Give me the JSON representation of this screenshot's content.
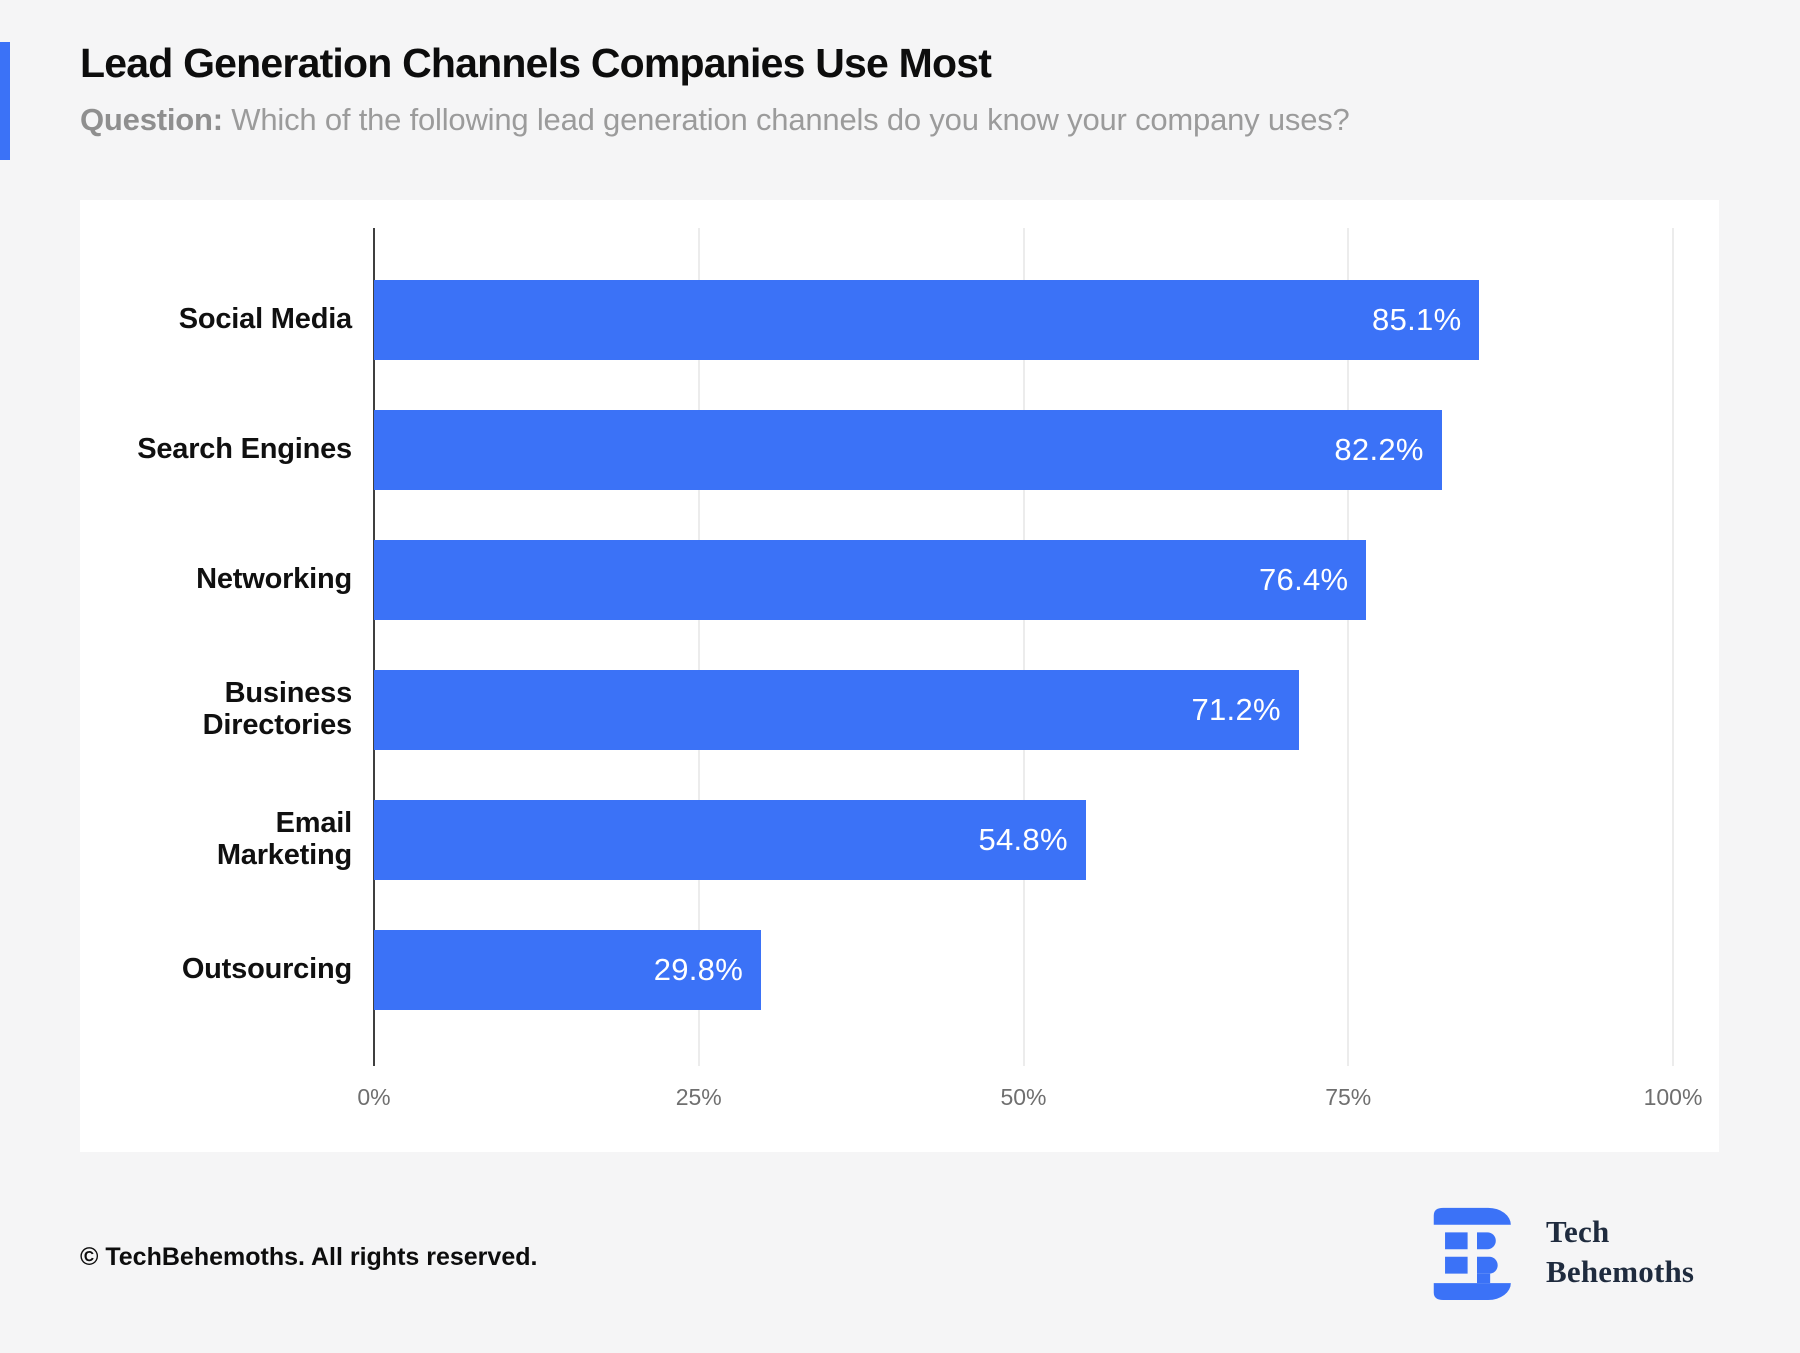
{
  "page": {
    "background_color": "#F5F5F6",
    "accent_color": "#3B72F7"
  },
  "header": {
    "title": "Lead Generation Channels Companies Use Most",
    "question_label": "Question:",
    "question_text": " Which of the following lead generation channels do you know your company uses?"
  },
  "chart_data": {
    "type": "bar",
    "orientation": "horizontal",
    "title": "Lead Generation Channels Companies Use Most",
    "categories": [
      "Social Media",
      "Search Engines",
      "Networking",
      "Business\nDirectories",
      "Email\nMarketing",
      "Outsourcing"
    ],
    "values": [
      85.1,
      82.2,
      76.4,
      71.2,
      54.8,
      29.8
    ],
    "value_labels": [
      "85.1%",
      "82.2%",
      "76.4%",
      "71.2%",
      "54.8%",
      "29.8%"
    ],
    "xlim": [
      0,
      100
    ],
    "x_ticks": [
      {
        "value": 0,
        "label": "0%"
      },
      {
        "value": 25,
        "label": "25%"
      },
      {
        "value": 50,
        "label": "50%"
      },
      {
        "value": 75,
        "label": "75%"
      },
      {
        "value": 100,
        "label": "100%"
      }
    ],
    "grid": true,
    "legend": false,
    "bar_color": "#3B72F7",
    "gridline_color": "#ECECEC",
    "axis_color": "#3F3F3F",
    "value_label_color": "#FFFFFF"
  },
  "footer": {
    "copyright": "© TechBehemoths. All rights reserved.",
    "logo": {
      "line1": "Tech",
      "line2": "Behemoths",
      "mark_color": "#3B72F7",
      "text_color": "#1F2B3E"
    }
  }
}
